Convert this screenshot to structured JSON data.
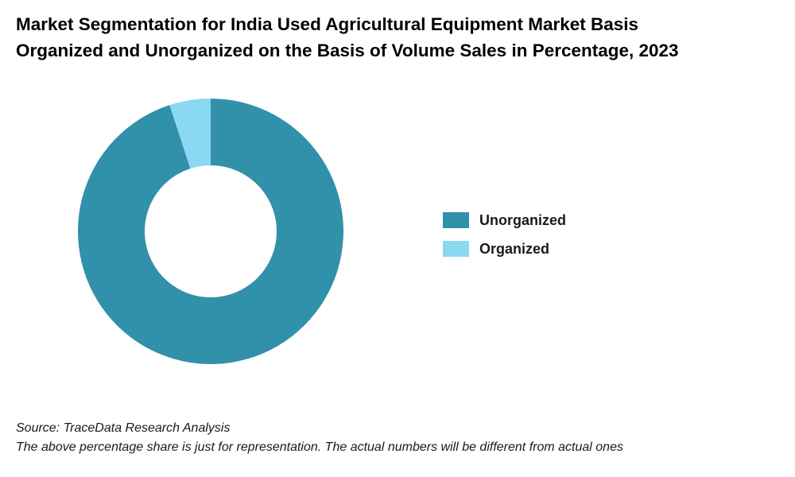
{
  "chart_data": {
    "type": "pie",
    "title_lines": [
      "Market Segmentation for India Used Agricultural Equipment Market Basis",
      "Organized and Unorganized on the Basis of Volume Sales in Percentage, 2023"
    ],
    "categories": [
      "Unorganized",
      "Organized"
    ],
    "values": [
      95,
      5
    ],
    "unit": "%",
    "colors": [
      "#3190aa",
      "#8ad8f2"
    ],
    "donut": true,
    "start_angle": "12 o'clock",
    "direction": "clockwise",
    "legend_position": "right",
    "data_labels": false
  },
  "footer": {
    "source": "Source: TraceData Research Analysis",
    "note": "The above percentage share is just for representation. The actual numbers will be different from actual ones"
  }
}
